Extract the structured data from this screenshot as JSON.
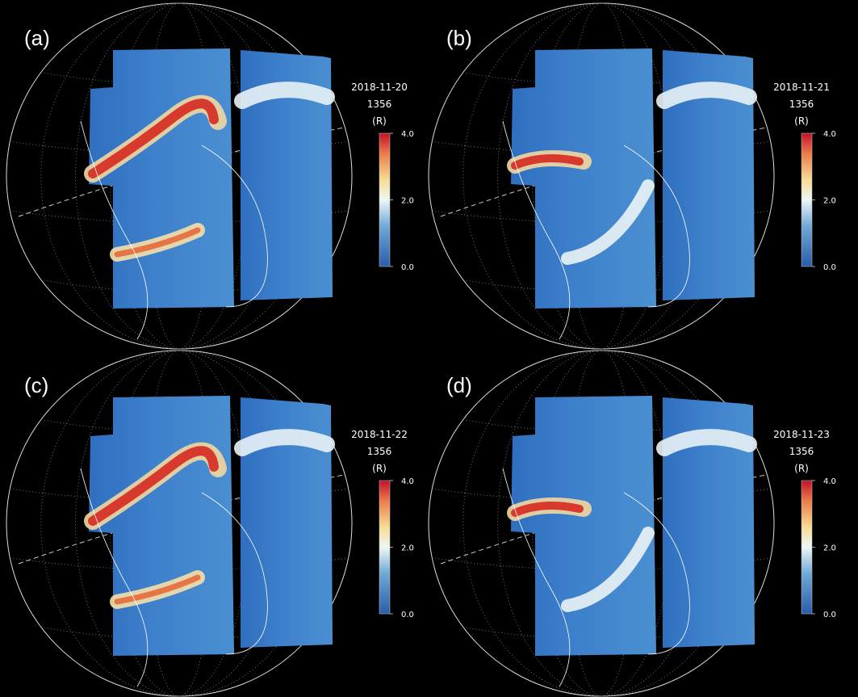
{
  "panels": [
    {
      "label": "(a)",
      "date": "2018-11-20",
      "wavelength": "1356",
      "unit": "(R)",
      "colorbar": {
        "ticks": [
          {
            "value": 4,
            "label": "4.0"
          },
          {
            "value": 2,
            "label": "2.0"
          },
          {
            "value": 0,
            "label": "0.0"
          }
        ]
      }
    },
    {
      "label": "(b)",
      "date": "2018-11-21",
      "wavelength": "1356",
      "unit": "(R)",
      "colorbar": {
        "ticks": [
          {
            "value": 4,
            "label": "4.0"
          },
          {
            "value": 2,
            "label": "2.0"
          },
          {
            "value": 0,
            "label": "0.0"
          }
        ]
      }
    },
    {
      "label": "(c)",
      "date": "2018-11-22",
      "wavelength": "1356",
      "unit": "(R)",
      "colorbar": {
        "ticks": [
          {
            "value": 4,
            "label": "4.0"
          },
          {
            "value": 2,
            "label": "2.0"
          },
          {
            "value": 0,
            "label": "0.0"
          }
        ]
      }
    },
    {
      "label": "(d)",
      "date": "2018-11-23",
      "wavelength": "1356",
      "unit": "(R)",
      "colorbar": {
        "ticks": [
          {
            "value": 4,
            "label": "4.0"
          },
          {
            "value": 2,
            "label": "2.0"
          },
          {
            "value": 0,
            "label": "0.0"
          }
        ]
      }
    }
  ]
}
